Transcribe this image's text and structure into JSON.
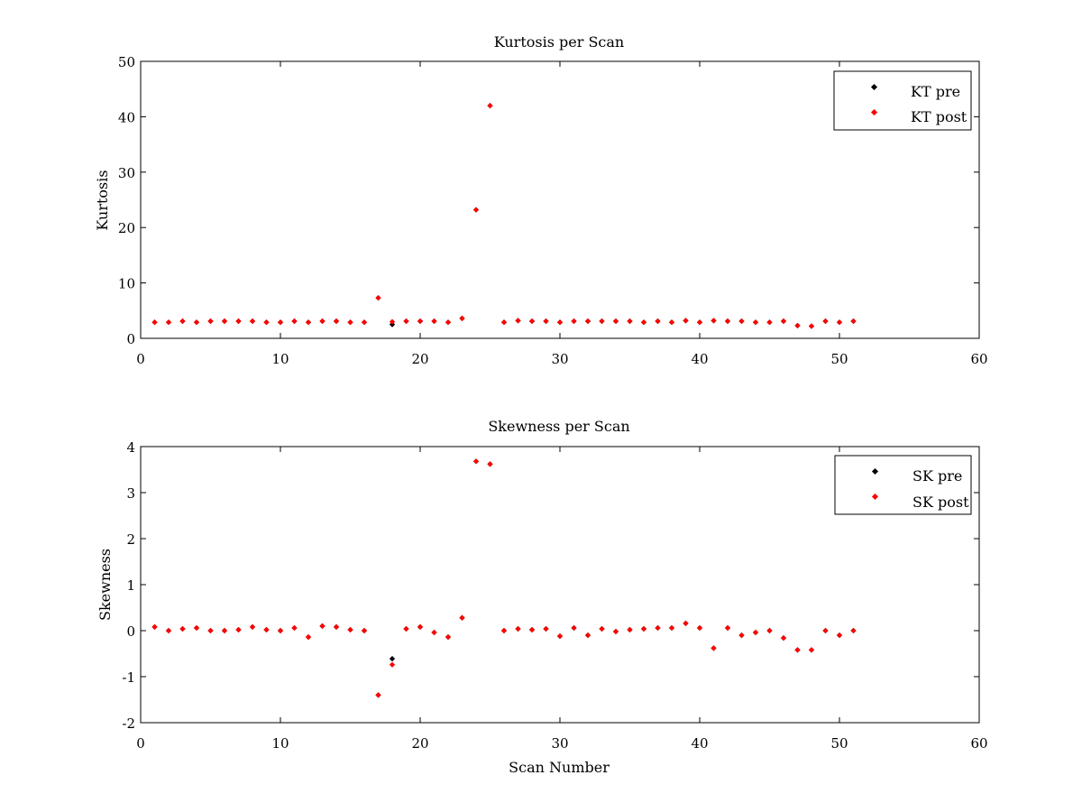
{
  "chart_data": [
    {
      "type": "scatter",
      "title": "Kurtosis per Scan",
      "xlabel": "",
      "ylabel": "Kurtosis",
      "xlim": [
        0,
        60
      ],
      "ylim": [
        0,
        50
      ],
      "xticks": [
        0,
        10,
        20,
        30,
        40,
        50,
        60
      ],
      "yticks": [
        0,
        10,
        20,
        30,
        40,
        50
      ],
      "grid": false,
      "legend_position": "top-right",
      "series": [
        {
          "name": "KT pre",
          "color": "#000000",
          "x": [
            1,
            2,
            3,
            4,
            5,
            6,
            7,
            8,
            9,
            10,
            11,
            12,
            13,
            14,
            15,
            16,
            17,
            18,
            19,
            20,
            21,
            22,
            23,
            24,
            25,
            26,
            27,
            28,
            29,
            30,
            31,
            32,
            33,
            34,
            35,
            36,
            37,
            38,
            39,
            40,
            41,
            42,
            43,
            44,
            45,
            46,
            47,
            48,
            49,
            50,
            51
          ],
          "y": [
            2.9,
            2.9,
            3.1,
            2.9,
            3.1,
            3.1,
            3.1,
            3.1,
            2.9,
            2.9,
            3.1,
            2.9,
            3.1,
            3.1,
            2.9,
            2.9,
            7.3,
            2.5,
            3.1,
            3.1,
            3.1,
            2.9,
            3.6,
            23.2,
            42.0,
            2.9,
            3.2,
            3.1,
            3.1,
            2.9,
            3.1,
            3.1,
            3.1,
            3.1,
            3.1,
            2.9,
            3.1,
            2.9,
            3.2,
            2.9,
            3.2,
            3.1,
            3.1,
            2.9,
            2.9,
            3.1,
            2.3,
            2.2,
            3.1,
            2.9,
            3.1
          ]
        },
        {
          "name": "KT post",
          "color": "#ff0000",
          "x": [
            1,
            2,
            3,
            4,
            5,
            6,
            7,
            8,
            9,
            10,
            11,
            12,
            13,
            14,
            15,
            16,
            17,
            18,
            19,
            20,
            21,
            22,
            23,
            24,
            25,
            26,
            27,
            28,
            29,
            30,
            31,
            32,
            33,
            34,
            35,
            36,
            37,
            38,
            39,
            40,
            41,
            42,
            43,
            44,
            45,
            46,
            47,
            48,
            49,
            50,
            51
          ],
          "y": [
            2.9,
            2.9,
            3.1,
            2.9,
            3.1,
            3.1,
            3.1,
            3.1,
            2.9,
            2.9,
            3.1,
            2.9,
            3.1,
            3.1,
            2.9,
            2.9,
            7.3,
            3.0,
            3.1,
            3.1,
            3.1,
            2.9,
            3.6,
            23.2,
            42.0,
            2.9,
            3.2,
            3.1,
            3.1,
            2.9,
            3.1,
            3.1,
            3.1,
            3.1,
            3.1,
            2.9,
            3.1,
            2.9,
            3.2,
            2.9,
            3.2,
            3.1,
            3.1,
            2.9,
            2.9,
            3.1,
            2.3,
            2.2,
            3.1,
            2.9,
            3.1
          ]
        }
      ]
    },
    {
      "type": "scatter",
      "title": "Skewness per Scan",
      "xlabel": "Scan Number",
      "ylabel": "Skewness",
      "xlim": [
        0,
        60
      ],
      "ylim": [
        -2,
        4
      ],
      "xticks": [
        0,
        10,
        20,
        30,
        40,
        50,
        60
      ],
      "yticks": [
        -2,
        -1,
        0,
        1,
        2,
        3,
        4
      ],
      "grid": false,
      "legend_position": "top-right",
      "series": [
        {
          "name": "SK pre",
          "color": "#000000",
          "x": [
            1,
            2,
            3,
            4,
            5,
            6,
            7,
            8,
            9,
            10,
            11,
            12,
            13,
            14,
            15,
            16,
            17,
            18,
            19,
            20,
            21,
            22,
            23,
            24,
            25,
            26,
            27,
            28,
            29,
            30,
            31,
            32,
            33,
            34,
            35,
            36,
            37,
            38,
            39,
            40,
            41,
            42,
            43,
            44,
            45,
            46,
            47,
            48,
            49,
            50,
            51
          ],
          "y": [
            0.08,
            0.0,
            0.04,
            0.06,
            0.0,
            0.0,
            0.02,
            0.08,
            0.02,
            0.0,
            0.06,
            -0.14,
            0.1,
            0.08,
            0.02,
            0.0,
            -1.4,
            -0.61,
            0.04,
            0.08,
            -0.04,
            -0.14,
            0.28,
            3.68,
            3.62,
            0.0,
            0.04,
            0.02,
            0.04,
            -0.12,
            0.06,
            -0.1,
            0.04,
            -0.02,
            0.02,
            0.04,
            0.06,
            0.06,
            0.16,
            0.06,
            -0.38,
            0.06,
            -0.1,
            -0.04,
            0.0,
            -0.16,
            -0.42,
            -0.42,
            0.0,
            -0.1,
            0.0
          ]
        },
        {
          "name": "SK post",
          "color": "#ff0000",
          "x": [
            1,
            2,
            3,
            4,
            5,
            6,
            7,
            8,
            9,
            10,
            11,
            12,
            13,
            14,
            15,
            16,
            17,
            18,
            19,
            20,
            21,
            22,
            23,
            24,
            25,
            26,
            27,
            28,
            29,
            30,
            31,
            32,
            33,
            34,
            35,
            36,
            37,
            38,
            39,
            40,
            41,
            42,
            43,
            44,
            45,
            46,
            47,
            48,
            49,
            50,
            51
          ],
          "y": [
            0.08,
            0.0,
            0.04,
            0.06,
            0.0,
            0.0,
            0.02,
            0.08,
            0.02,
            0.0,
            0.06,
            -0.14,
            0.1,
            0.08,
            0.02,
            0.0,
            -1.4,
            -0.74,
            0.04,
            0.08,
            -0.04,
            -0.14,
            0.28,
            3.68,
            3.62,
            0.0,
            0.04,
            0.02,
            0.04,
            -0.12,
            0.06,
            -0.1,
            0.04,
            -0.02,
            0.02,
            0.04,
            0.06,
            0.06,
            0.16,
            0.06,
            -0.38,
            0.06,
            -0.1,
            -0.04,
            0.0,
            -0.16,
            -0.42,
            -0.42,
            0.0,
            -0.1,
            0.0
          ]
        }
      ]
    }
  ]
}
